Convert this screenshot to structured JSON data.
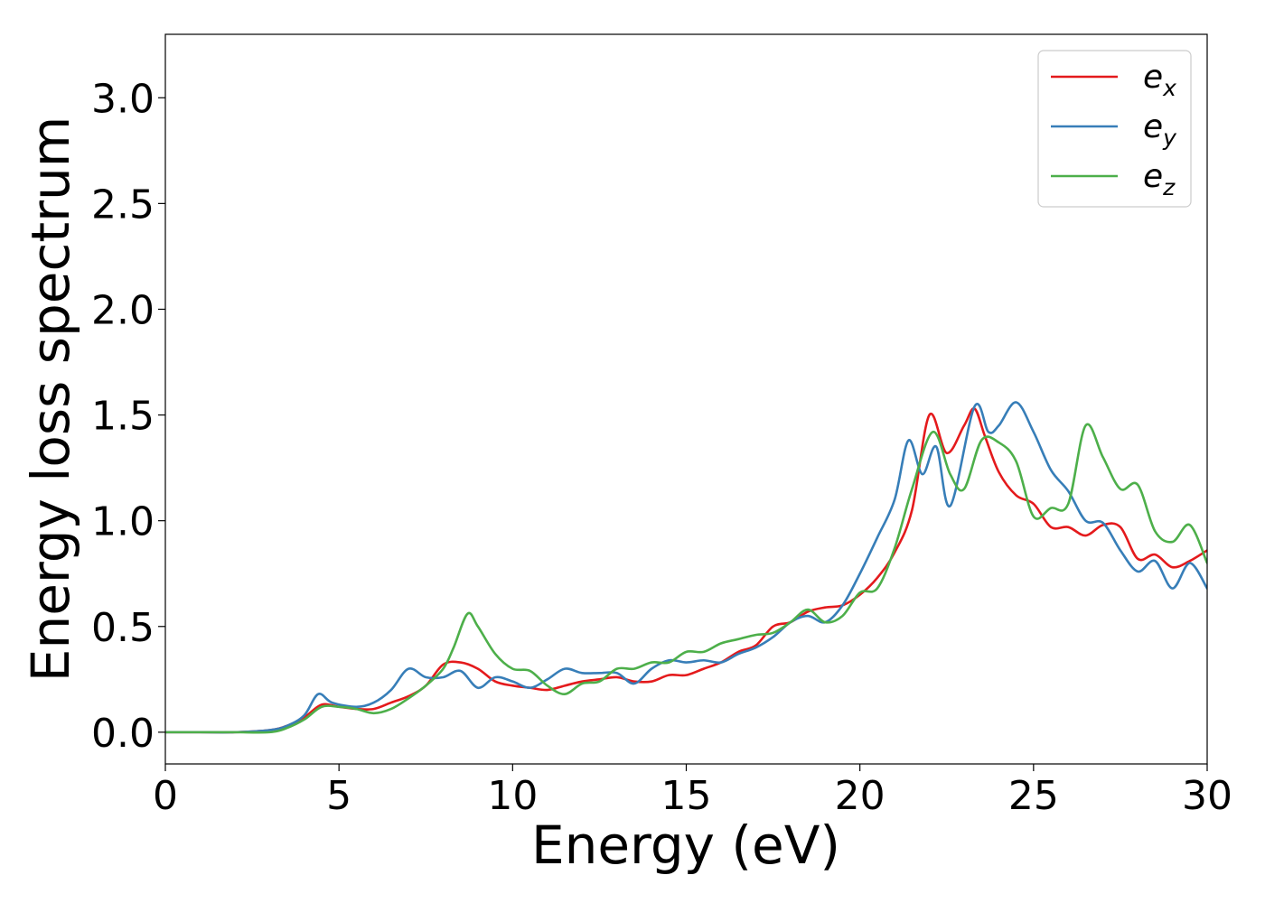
{
  "chart_data": {
    "type": "line",
    "title": "",
    "xlabel": "Energy (eV)",
    "ylabel": "Energy loss spectrum",
    "xlim": [
      0,
      30
    ],
    "ylim": [
      -0.15,
      3.3
    ],
    "xticks": [
      0,
      5,
      10,
      15,
      20,
      25,
      30
    ],
    "xtick_labels": [
      "0",
      "5",
      "10",
      "15",
      "20",
      "25",
      "30"
    ],
    "yticks": [
      0.0,
      0.5,
      1.0,
      1.5,
      2.0,
      2.5,
      3.0
    ],
    "ytick_labels": [
      "0.0",
      "0.5",
      "1.0",
      "1.5",
      "2.0",
      "2.5",
      "3.0"
    ],
    "grid": false,
    "legend_position": "top-right",
    "series": [
      {
        "name": "e_x",
        "label_base": "e",
        "label_sub": "x",
        "color": "#e41a1c",
        "x": [
          0,
          1,
          2,
          3,
          3.5,
          4,
          4.5,
          5,
          5.5,
          6,
          6.5,
          7,
          7.5,
          8,
          8.5,
          9,
          9.5,
          10,
          10.5,
          11,
          11.5,
          12,
          12.5,
          13,
          13.5,
          14,
          14.5,
          15,
          15.5,
          16,
          16.5,
          17,
          17.5,
          18,
          18.5,
          19,
          19.5,
          20,
          20.5,
          21,
          21.5,
          22,
          22.5,
          23,
          23.3,
          23.6,
          24,
          24.5,
          25,
          25.5,
          26,
          26.5,
          27,
          27.5,
          28,
          28.5,
          29,
          29.5,
          30
        ],
        "y": [
          0.0,
          0.0,
          0.0,
          0.01,
          0.03,
          0.07,
          0.13,
          0.12,
          0.11,
          0.11,
          0.14,
          0.17,
          0.22,
          0.32,
          0.33,
          0.3,
          0.24,
          0.22,
          0.21,
          0.2,
          0.22,
          0.24,
          0.25,
          0.26,
          0.24,
          0.24,
          0.27,
          0.27,
          0.3,
          0.33,
          0.38,
          0.41,
          0.5,
          0.52,
          0.57,
          0.59,
          0.6,
          0.65,
          0.73,
          0.85,
          1.05,
          1.5,
          1.32,
          1.45,
          1.53,
          1.4,
          1.23,
          1.12,
          1.08,
          0.97,
          0.97,
          0.93,
          0.98,
          0.97,
          0.82,
          0.84,
          0.78,
          0.81,
          0.86
        ]
      },
      {
        "name": "e_y",
        "label_base": "e",
        "label_sub": "y",
        "color": "#377eb8",
        "x": [
          0,
          1,
          2,
          3,
          3.5,
          4,
          4.4,
          4.8,
          5.5,
          6,
          6.5,
          7,
          7.5,
          8,
          8.5,
          9,
          9.5,
          10,
          10.5,
          11,
          11.5,
          12,
          12.5,
          13,
          13.5,
          14,
          14.5,
          15,
          15.5,
          16,
          16.5,
          17,
          17.5,
          18,
          18.5,
          19,
          19.5,
          20,
          20.5,
          21,
          21.4,
          21.8,
          22.2,
          22.6,
          23.3,
          23.7,
          24,
          24.5,
          25,
          25.5,
          26,
          26.5,
          27,
          27.5,
          28,
          28.5,
          29,
          29.5,
          30
        ],
        "y": [
          0.0,
          0.0,
          0.0,
          0.01,
          0.03,
          0.08,
          0.18,
          0.14,
          0.12,
          0.14,
          0.2,
          0.3,
          0.26,
          0.26,
          0.29,
          0.21,
          0.26,
          0.24,
          0.21,
          0.25,
          0.3,
          0.28,
          0.28,
          0.28,
          0.23,
          0.3,
          0.34,
          0.33,
          0.34,
          0.33,
          0.37,
          0.4,
          0.45,
          0.52,
          0.55,
          0.52,
          0.6,
          0.75,
          0.92,
          1.1,
          1.38,
          1.22,
          1.35,
          1.07,
          1.54,
          1.42,
          1.45,
          1.56,
          1.42,
          1.24,
          1.14,
          1.0,
          0.99,
          0.86,
          0.76,
          0.81,
          0.68,
          0.8,
          0.68
        ]
      },
      {
        "name": "e_z",
        "label_base": "e",
        "label_sub": "z",
        "color": "#4daf4a",
        "x": [
          0,
          1,
          2,
          3,
          3.5,
          4,
          4.5,
          5,
          5.5,
          6,
          6.5,
          7,
          7.5,
          8,
          8.3,
          8.7,
          9,
          9.5,
          10,
          10.5,
          11,
          11.5,
          12,
          12.5,
          13,
          13.5,
          14,
          14.5,
          15,
          15.5,
          16,
          16.5,
          17,
          17.5,
          18,
          18.5,
          19,
          19.5,
          20,
          20.5,
          21,
          21.5,
          22.1,
          22.6,
          23,
          23.5,
          24,
          24.5,
          25,
          25.5,
          26,
          26.5,
          27,
          27.5,
          28,
          28.5,
          29,
          29.5,
          30
        ],
        "y": [
          0.0,
          0.0,
          0.0,
          0.0,
          0.02,
          0.06,
          0.12,
          0.12,
          0.11,
          0.09,
          0.11,
          0.16,
          0.22,
          0.3,
          0.4,
          0.56,
          0.5,
          0.37,
          0.3,
          0.29,
          0.22,
          0.18,
          0.23,
          0.24,
          0.3,
          0.3,
          0.33,
          0.33,
          0.38,
          0.38,
          0.42,
          0.44,
          0.46,
          0.47,
          0.52,
          0.58,
          0.52,
          0.55,
          0.66,
          0.68,
          0.87,
          1.15,
          1.42,
          1.22,
          1.15,
          1.38,
          1.37,
          1.28,
          1.02,
          1.06,
          1.08,
          1.45,
          1.3,
          1.15,
          1.17,
          0.95,
          0.9,
          0.98,
          0.8
        ]
      }
    ]
  }
}
